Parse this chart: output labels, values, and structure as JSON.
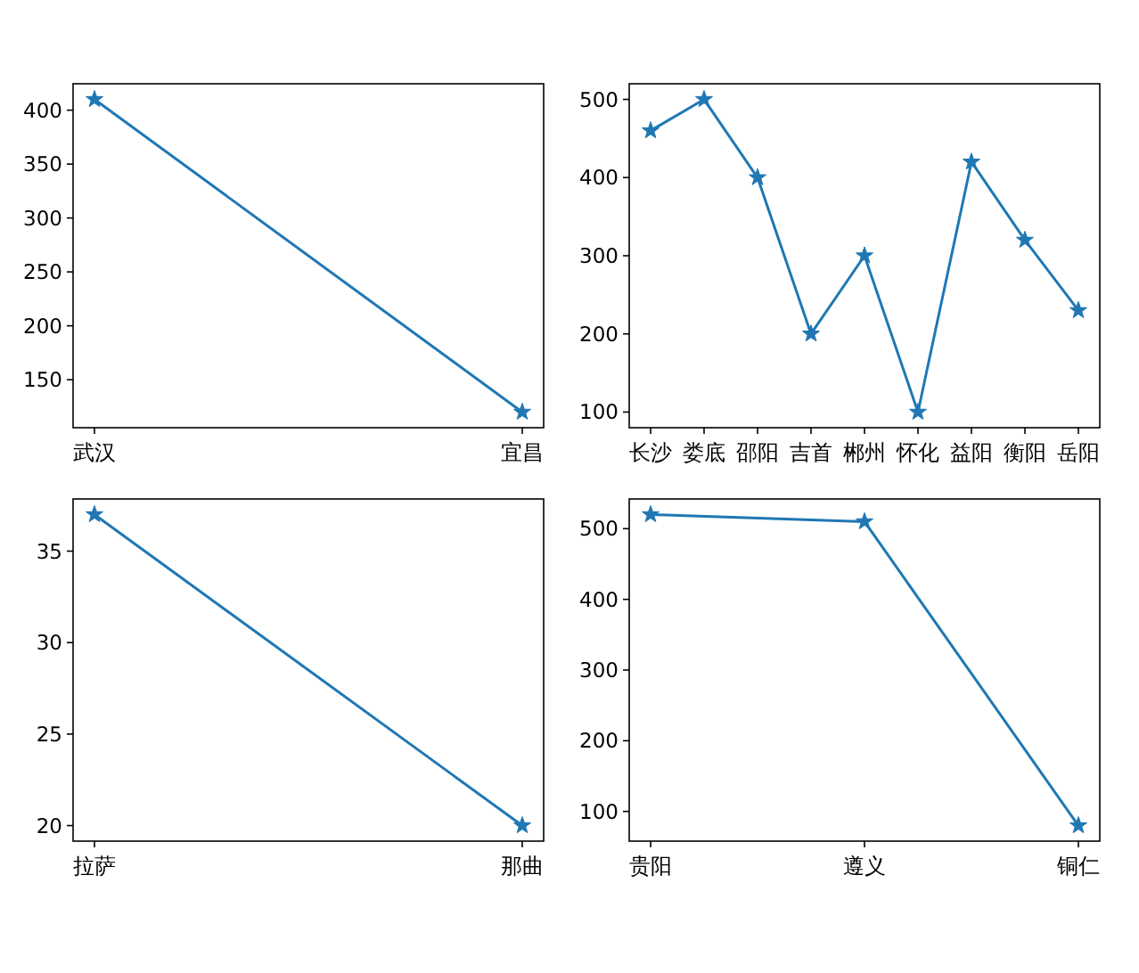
{
  "chart_data": [
    {
      "type": "line",
      "categories": [
        "武汉",
        "宜昌"
      ],
      "values": [
        410,
        120
      ],
      "color": "#1f77b4",
      "marker": "star",
      "ylim": [
        105.5,
        424.5
      ],
      "yticks": [
        150,
        200,
        250,
        300,
        350,
        400
      ]
    },
    {
      "type": "line",
      "categories": [
        "长沙",
        "娄底",
        "邵阳",
        "吉首",
        "郴州",
        "怀化",
        "益阳",
        "衡阳",
        "岳阳"
      ],
      "values": [
        460,
        500,
        400,
        200,
        300,
        100,
        420,
        320,
        230
      ],
      "color": "#1f77b4",
      "marker": "star",
      "ylim": [
        80,
        520
      ],
      "yticks": [
        100,
        200,
        300,
        400,
        500
      ]
    },
    {
      "type": "line",
      "categories": [
        "拉萨",
        "那曲"
      ],
      "values": [
        37,
        20
      ],
      "color": "#1f77b4",
      "marker": "star",
      "ylim": [
        19.15,
        37.85
      ],
      "yticks": [
        20,
        25,
        30,
        35
      ]
    },
    {
      "type": "line",
      "categories": [
        "贵阳",
        "遵义",
        "铜仁"
      ],
      "values": [
        520,
        510,
        80
      ],
      "color": "#1f77b4",
      "marker": "star",
      "ylim": [
        58,
        542
      ],
      "yticks": [
        100,
        200,
        300,
        400,
        500
      ]
    }
  ]
}
